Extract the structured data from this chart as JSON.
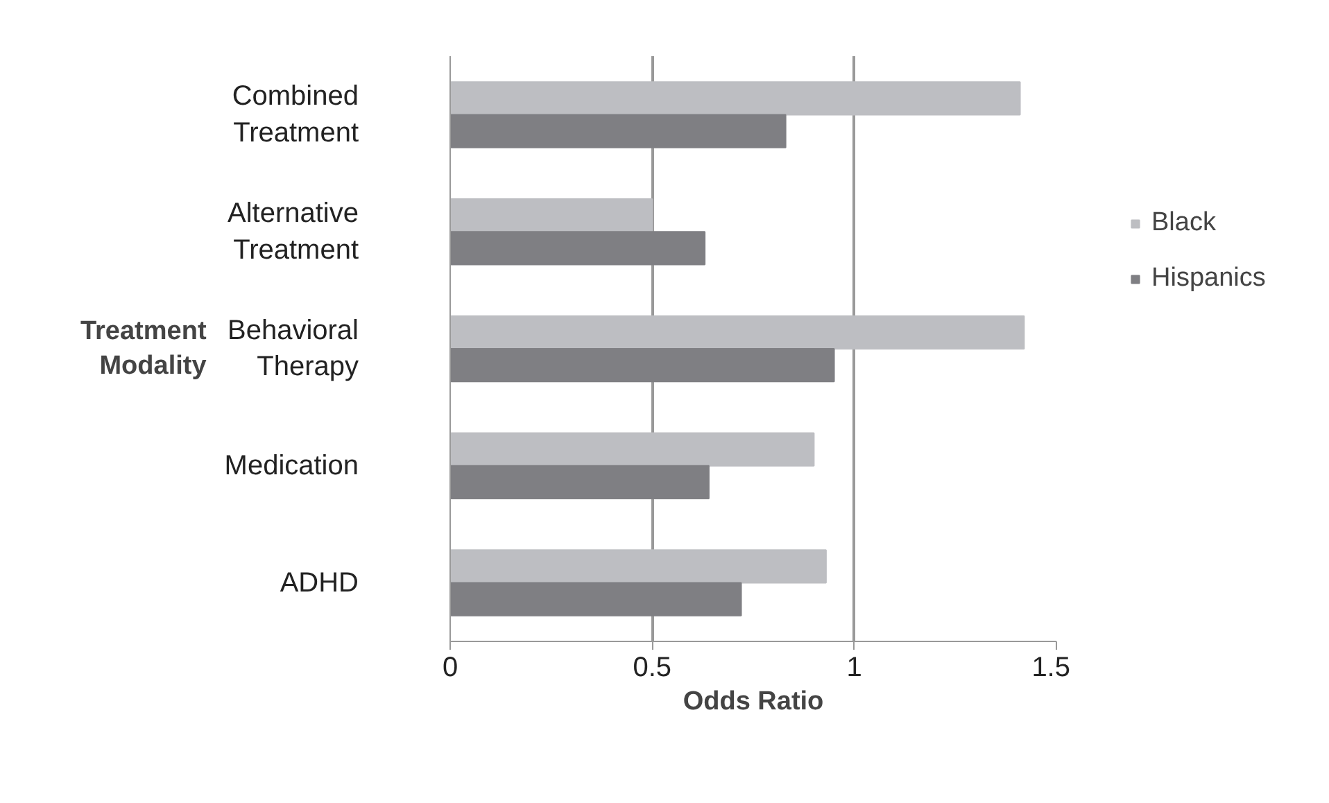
{
  "chart_data": {
    "type": "bar",
    "orientation": "horizontal",
    "xlabel": "Odds Ratio",
    "ylabel": "Treatment Modality",
    "categories": [
      "Combined Treatment",
      "Alternative Treatment",
      "Behavioral Therapy",
      "Medication",
      "ADHD"
    ],
    "series": [
      {
        "name": "Black",
        "color": "#bdbec2",
        "values": [
          1.41,
          0.5,
          1.42,
          0.9,
          0.93
        ]
      },
      {
        "name": "Hispanics",
        "color": "#7f7f83",
        "values": [
          0.83,
          0.63,
          0.95,
          0.64,
          0.72
        ]
      }
    ],
    "xlim": [
      0,
      1.5
    ],
    "xticks": [
      0,
      0.5,
      1,
      1.5
    ],
    "grid": "x",
    "legend": "right"
  }
}
